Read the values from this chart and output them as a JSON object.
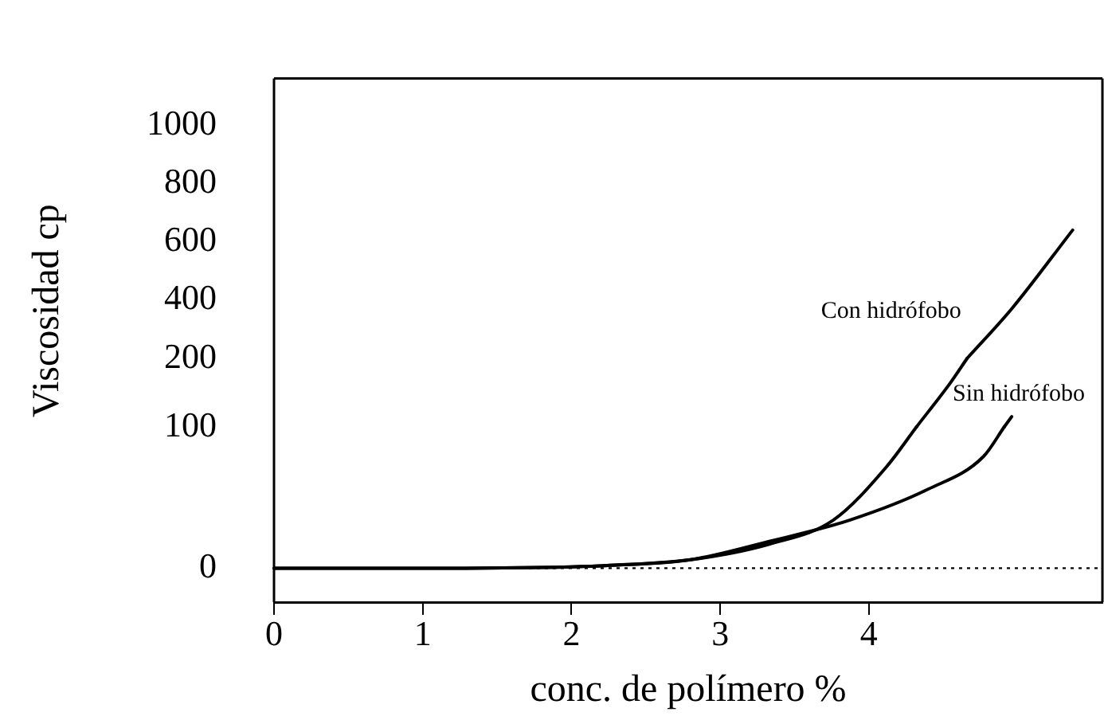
{
  "chart_data": [
    {
      "type": "line",
      "ylabel": "Viscosidad cp",
      "xlim": [
        0,
        5.57
      ],
      "xticks": [
        0,
        1,
        2,
        3,
        4
      ],
      "ylim": [
        200,
        1160
      ],
      "yticks": [
        200,
        400,
        600,
        800,
        1000
      ],
      "tick_labels": "y",
      "grid": false,
      "legend": false,
      "marker": "none",
      "line_style": "solid",
      "series": [
        {
          "name": "Con hidrófobo",
          "color": "#000000",
          "x": [
            4.66,
            4.96,
            5.37
          ],
          "values": [
            200,
            370,
            640
          ]
        }
      ]
    },
    {
      "type": "line",
      "xlim": [
        0,
        5.57
      ],
      "xticks": [
        0,
        1,
        2,
        3,
        4
      ],
      "ylim": [
        100,
        200
      ],
      "yticks": [
        100,
        200
      ],
      "tick_labels": false,
      "grid": false,
      "legend": false,
      "marker": "none",
      "line_style": "solid",
      "series": [
        {
          "color": "#000000",
          "x": [
            4.32,
            4.55,
            4.66
          ],
          "values": [
            100,
            165,
            200
          ]
        },
        {
          "name": "Sin hidrófobo",
          "color": "#000000",
          "x": [
            4.91,
            4.96
          ],
          "values": [
            100,
            115
          ]
        }
      ]
    },
    {
      "type": "line",
      "xlabel": "conc. de polímero %",
      "xlim": [
        0,
        5.57
      ],
      "xticks": [
        0,
        1,
        2,
        3,
        4
      ],
      "ylim": [
        -24,
        100
      ],
      "yticks": [
        0,
        100
      ],
      "grid": false,
      "legend": false,
      "marker": "none",
      "line_style": "solid",
      "series": [
        {
          "color": "#000000",
          "x": [
            0,
            1,
            2,
            2.26,
            2.8,
            3.33,
            3.76,
            4.12,
            4.32
          ],
          "values": [
            0,
            0,
            1,
            2,
            6,
            17,
            34,
            72,
            100
          ]
        },
        {
          "color": "#000000",
          "x": [
            0,
            1,
            2,
            2.26,
            2.8,
            3.33,
            3.87,
            4.4,
            4.77,
            4.91
          ],
          "values": [
            0,
            0,
            1,
            2,
            6,
            19,
            34,
            56,
            79,
            100
          ]
        }
      ],
      "ref_lines": [
        {
          "axis": "y",
          "value": 0,
          "line_style": "dotted",
          "color": "#000000"
        }
      ]
    }
  ]
}
